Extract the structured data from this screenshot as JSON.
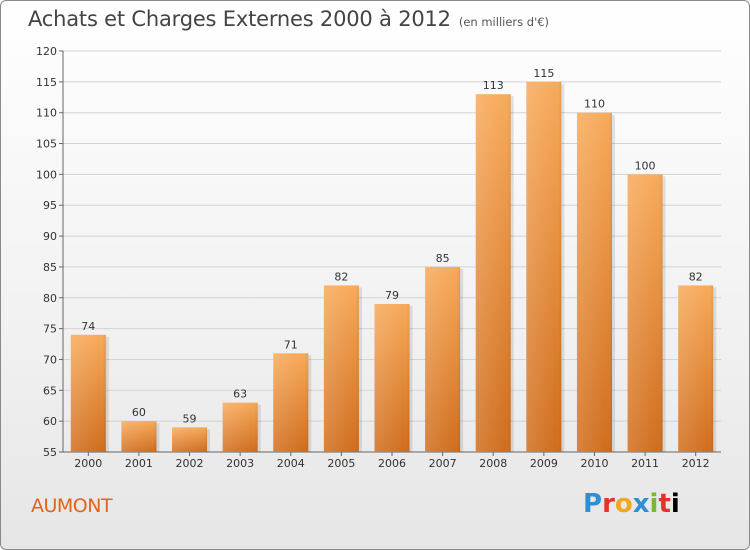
{
  "title": "Achats et Charges Externes 2000 à 2012",
  "subtitle": "(en milliers d'€)",
  "commune": "AUMONT",
  "logo_text": "Proxiti",
  "colors": {
    "bar_light": "#f7a656",
    "bar_dark": "#d4711f",
    "accent": "#e2641b"
  },
  "chart_data": {
    "type": "bar",
    "title": "Achats et Charges Externes 2000 à 2012",
    "subtitle": "(en milliers d'€)",
    "categories": [
      "2000",
      "2001",
      "2002",
      "2003",
      "2004",
      "2005",
      "2006",
      "2007",
      "2008",
      "2009",
      "2010",
      "2011",
      "2012"
    ],
    "values": [
      74,
      60,
      59,
      63,
      71,
      82,
      79,
      85,
      113,
      115,
      110,
      100,
      82
    ],
    "ylim": [
      55,
      120
    ],
    "yticks": [
      55,
      60,
      65,
      70,
      75,
      80,
      85,
      90,
      95,
      100,
      105,
      110,
      115,
      120
    ],
    "grid": true,
    "xlabel": "",
    "ylabel": ""
  }
}
